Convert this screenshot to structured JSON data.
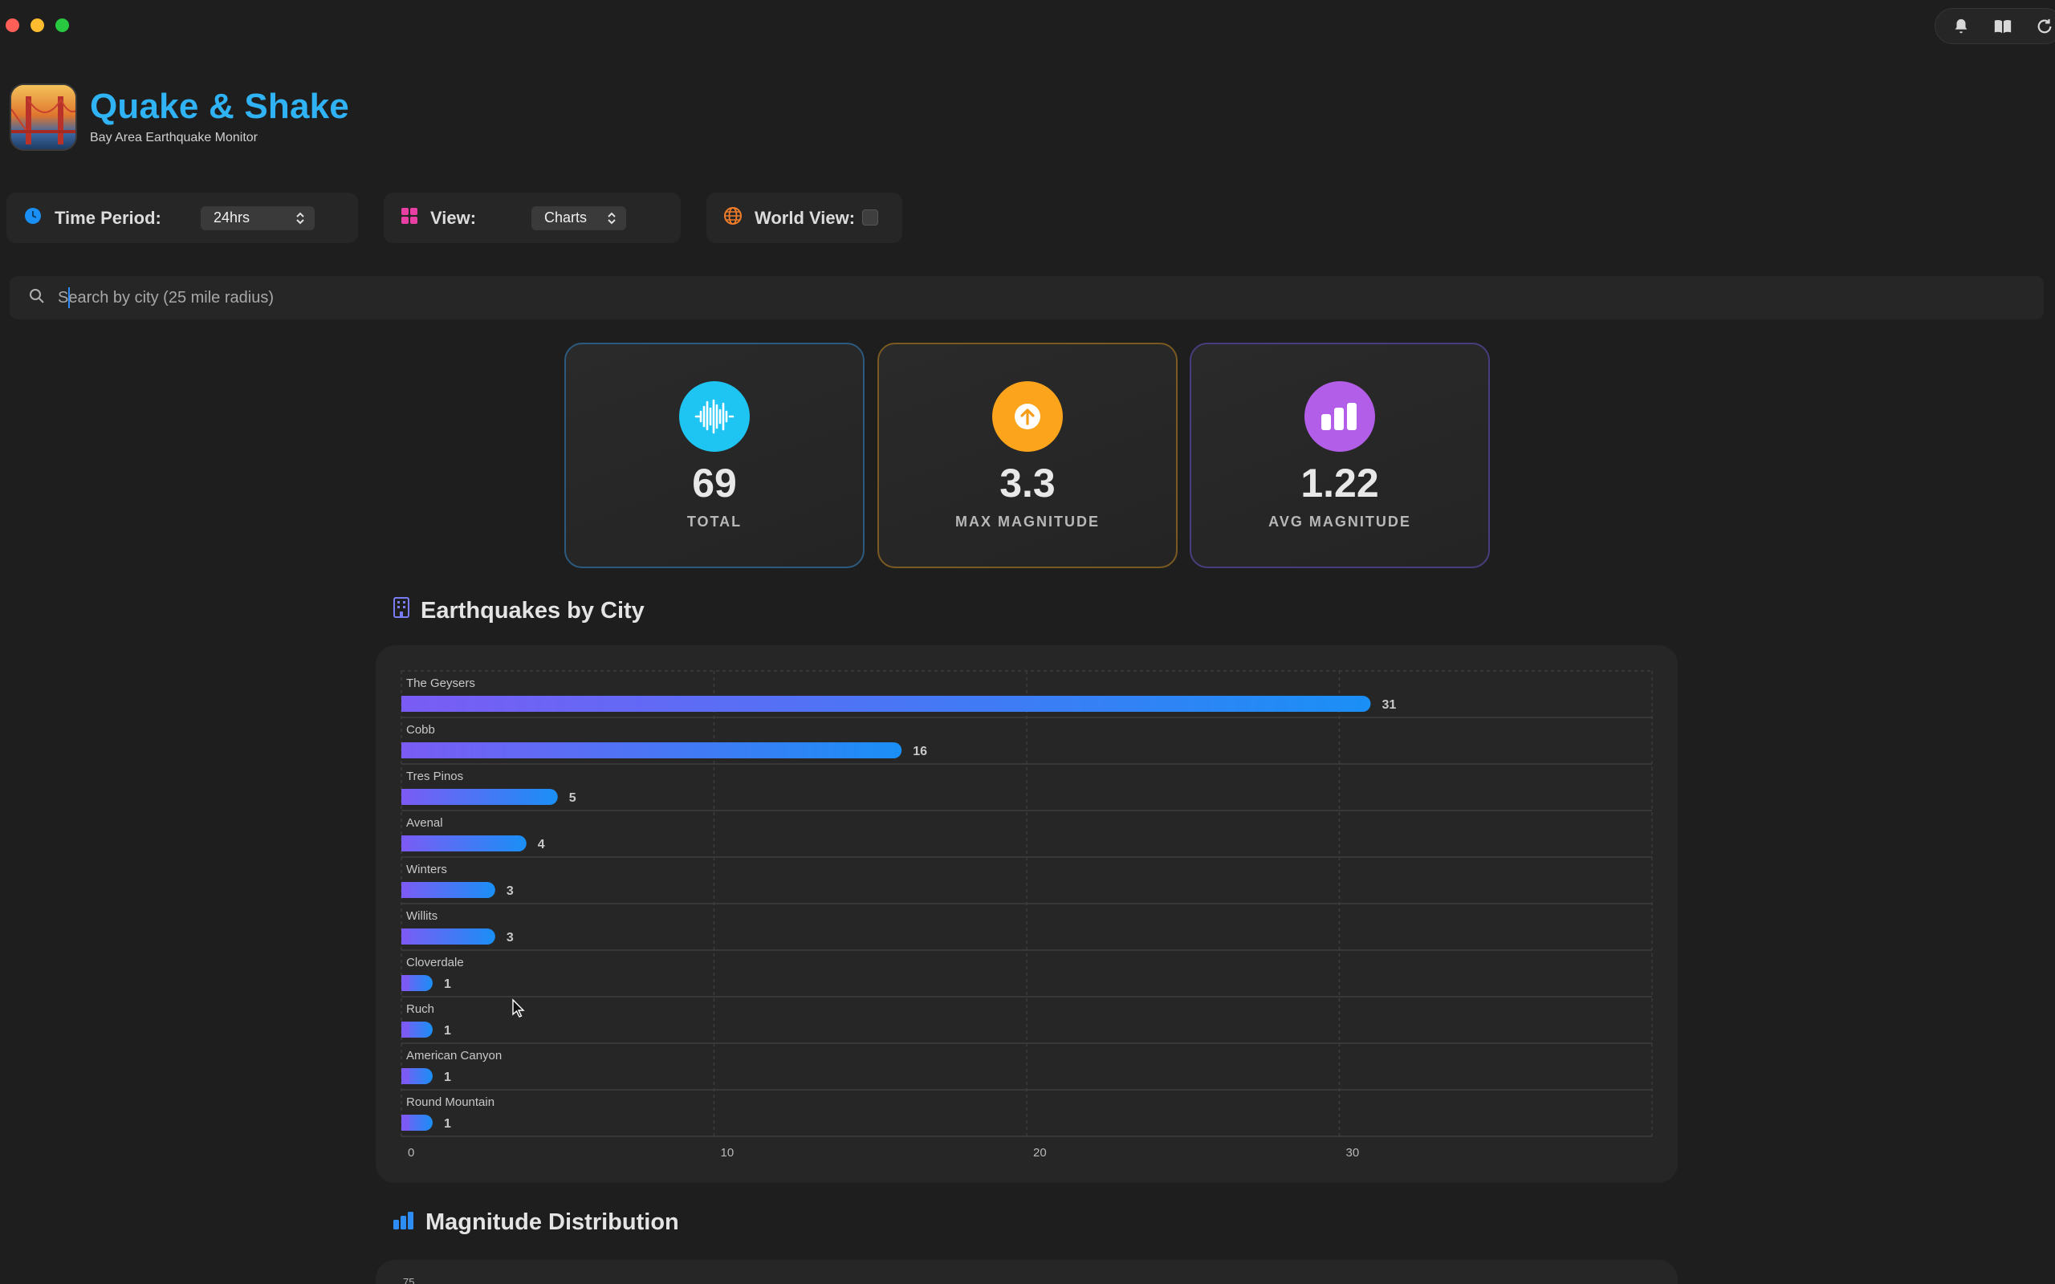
{
  "window": {
    "traffic_lights": [
      "close",
      "minimize",
      "maximize"
    ],
    "toolbar_icons": [
      "bell-icon",
      "book-icon",
      "refresh-icon"
    ]
  },
  "header": {
    "title": "Quake & Shake",
    "subtitle": "Bay Area Earthquake Monitor"
  },
  "controls": {
    "time_period": {
      "label": "Time Period:",
      "value": "24hrs",
      "icon": "clock-icon",
      "color": "#1a8ff5"
    },
    "view": {
      "label": "View:",
      "value": "Charts",
      "icon": "grid-icon",
      "color": "#e83fa5"
    },
    "world_view": {
      "label": "World View:",
      "checked": false,
      "icon": "globe-icon",
      "color": "#f07d2a"
    }
  },
  "search": {
    "placeholder": "Search by city (25 mile radius)",
    "value": ""
  },
  "stats": [
    {
      "value": "69",
      "label": "TOTAL",
      "icon": "waveform-icon",
      "color": "#1ec5f2",
      "border": "#2c5a7e"
    },
    {
      "value": "3.3",
      "label": "MAX MAGNITUDE",
      "icon": "arrow-up-circle-icon",
      "color": "#fba41c",
      "border": "#7a5a21"
    },
    {
      "value": "1.22",
      "label": "AVG MAGNITUDE",
      "icon": "bar-chart-icon",
      "color": "#b35ee8",
      "border": "#4a3d7e"
    }
  ],
  "sections": {
    "by_city": {
      "title": "Earthquakes by City",
      "icon": "building-icon"
    },
    "magnitude": {
      "title": "Magnitude Distribution",
      "icon": "bar-chart-icon",
      "first_tick": "75"
    }
  },
  "chart_data": {
    "type": "bar",
    "orientation": "horizontal",
    "categories": [
      "The Geysers",
      "Cobb",
      "Tres Pinos",
      "Avenal",
      "Winters",
      "Willits",
      "Cloverdale",
      "Ruch",
      "American Canyon",
      "Round Mountain"
    ],
    "values": [
      31,
      16,
      5,
      4,
      3,
      3,
      1,
      1,
      1,
      1
    ],
    "xticks": [
      0,
      10,
      20,
      30
    ],
    "xlim": [
      0,
      40
    ],
    "grid": true,
    "bar_gradient": [
      "#7a5cf5",
      "#1a8ff5"
    ]
  }
}
